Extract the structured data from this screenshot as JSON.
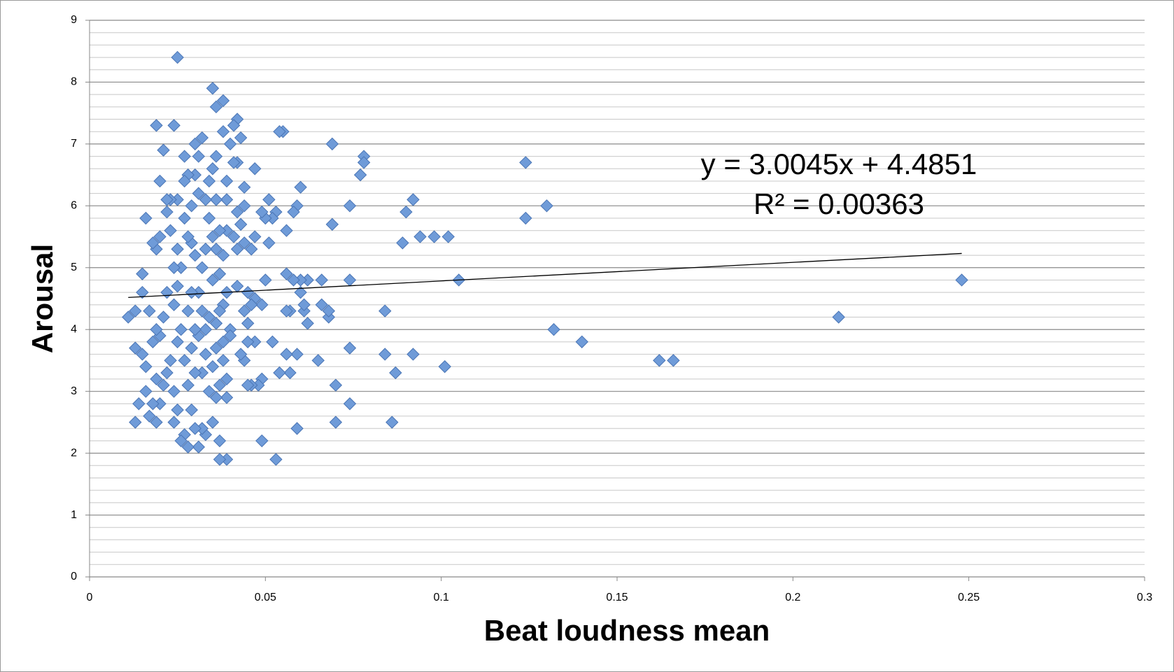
{
  "chart_data": {
    "type": "scatter",
    "x_label": "Beat loudness mean",
    "y_label": "Arousal",
    "xlim": [
      0,
      0.3
    ],
    "xticks": [
      0,
      0.05,
      0.1,
      0.15,
      0.2,
      0.25,
      0.3
    ],
    "ylim": [
      0,
      9
    ],
    "yticks": [
      0,
      1,
      2,
      3,
      4,
      5,
      6,
      7,
      8,
      9
    ],
    "grid": true,
    "minor_grid": true,
    "color": "#6f9bd8",
    "x": [
      0.248,
      0.213,
      0.166,
      0.162,
      0.14,
      0.132,
      0.13,
      0.124,
      0.124,
      0.105,
      0.102,
      0.101,
      0.098,
      0.094,
      0.092,
      0.092,
      0.09,
      0.089,
      0.087,
      0.086,
      0.084,
      0.084,
      0.078,
      0.078,
      0.077,
      0.074,
      0.074,
      0.074,
      0.074,
      0.07,
      0.07,
      0.069,
      0.069,
      0.068,
      0.068,
      0.066,
      0.066,
      0.065,
      0.062,
      0.062,
      0.061,
      0.061,
      0.06,
      0.06,
      0.06,
      0.059,
      0.059,
      0.059,
      0.058,
      0.058,
      0.057,
      0.057,
      0.056,
      0.056,
      0.056,
      0.056,
      0.055,
      0.054,
      0.054,
      0.053,
      0.053,
      0.052,
      0.052,
      0.051,
      0.051,
      0.05,
      0.05,
      0.049,
      0.049,
      0.049,
      0.049,
      0.048,
      0.047,
      0.047,
      0.047,
      0.047,
      0.046,
      0.046,
      0.046,
      0.045,
      0.045,
      0.045,
      0.045,
      0.044,
      0.044,
      0.044,
      0.044,
      0.044,
      0.043,
      0.043,
      0.043,
      0.042,
      0.042,
      0.042,
      0.042,
      0.042,
      0.041,
      0.041,
      0.041,
      0.04,
      0.04,
      0.04,
      0.039,
      0.039,
      0.039,
      0.039,
      0.039,
      0.039,
      0.039,
      0.038,
      0.038,
      0.038,
      0.038,
      0.038,
      0.038,
      0.037,
      0.037,
      0.037,
      0.037,
      0.037,
      0.037,
      0.036,
      0.036,
      0.036,
      0.036,
      0.036,
      0.036,
      0.036,
      0.035,
      0.035,
      0.035,
      0.035,
      0.035,
      0.035,
      0.034,
      0.034,
      0.034,
      0.034,
      0.033,
      0.033,
      0.033,
      0.033,
      0.033,
      0.032,
      0.032,
      0.032,
      0.032,
      0.032,
      0.031,
      0.031,
      0.031,
      0.031,
      0.031,
      0.03,
      0.03,
      0.03,
      0.03,
      0.03,
      0.03,
      0.029,
      0.029,
      0.029,
      0.029,
      0.029,
      0.028,
      0.028,
      0.028,
      0.028,
      0.028,
      0.027,
      0.027,
      0.027,
      0.027,
      0.027,
      0.026,
      0.026,
      0.026,
      0.025,
      0.025,
      0.025,
      0.025,
      0.025,
      0.025,
      0.024,
      0.024,
      0.024,
      0.024,
      0.024,
      0.023,
      0.023,
      0.023,
      0.022,
      0.022,
      0.022,
      0.022,
      0.021,
      0.021,
      0.021,
      0.02,
      0.02,
      0.02,
      0.02,
      0.019,
      0.019,
      0.019,
      0.019,
      0.019,
      0.018,
      0.018,
      0.018,
      0.017,
      0.017,
      0.016,
      0.016,
      0.016,
      0.015,
      0.015,
      0.015,
      0.014,
      0.013,
      0.013,
      0.013,
      0.011
    ],
    "y": [
      4.8,
      4.2,
      3.5,
      3.5,
      3.8,
      4.0,
      6.0,
      6.7,
      5.8,
      4.8,
      5.5,
      3.4,
      5.5,
      5.5,
      6.1,
      3.6,
      5.9,
      5.4,
      3.3,
      2.5,
      4.3,
      3.6,
      6.8,
      6.7,
      6.5,
      6.0,
      4.8,
      3.7,
      2.8,
      3.1,
      2.5,
      7.0,
      5.7,
      4.2,
      4.3,
      4.8,
      4.4,
      3.5,
      4.1,
      4.8,
      4.3,
      4.4,
      4.8,
      6.3,
      4.6,
      6.0,
      3.6,
      2.4,
      5.9,
      4.8,
      4.3,
      3.3,
      4.9,
      4.3,
      5.6,
      3.6,
      7.2,
      7.2,
      3.3,
      1.9,
      5.9,
      3.8,
      5.8,
      6.1,
      5.4,
      4.8,
      5.8,
      5.9,
      4.4,
      2.2,
      3.2,
      3.1,
      4.5,
      3.8,
      6.6,
      5.5,
      5.3,
      3.1,
      4.4,
      3.8,
      4.6,
      4.1,
      3.1,
      6.3,
      6.0,
      5.4,
      4.3,
      3.5,
      7.1,
      5.7,
      3.6,
      7.4,
      6.7,
      5.9,
      5.3,
      4.7,
      6.7,
      7.3,
      5.5,
      7.0,
      4.0,
      3.9,
      6.4,
      6.1,
      5.6,
      4.6,
      3.2,
      2.9,
      1.9,
      7.7,
      7.2,
      5.2,
      4.4,
      3.5,
      3.8,
      5.6,
      4.9,
      4.3,
      3.1,
      2.2,
      1.9,
      7.6,
      6.8,
      6.1,
      5.3,
      4.1,
      3.7,
      2.9,
      7.9,
      6.6,
      5.5,
      4.8,
      3.4,
      2.5,
      6.4,
      5.8,
      4.2,
      3.0,
      6.1,
      5.3,
      4.0,
      3.6,
      2.3,
      7.1,
      5.0,
      4.3,
      3.3,
      2.4,
      6.8,
      6.2,
      4.6,
      3.9,
      2.1,
      7.0,
      6.5,
      5.2,
      4.0,
      3.3,
      2.4,
      6.0,
      5.4,
      4.6,
      3.7,
      2.7,
      6.5,
      5.5,
      4.3,
      3.1,
      2.1,
      6.8,
      6.4,
      5.8,
      3.5,
      2.3,
      5.0,
      4.0,
      2.2,
      8.4,
      6.1,
      5.3,
      4.7,
      3.8,
      2.7,
      7.3,
      5.0,
      4.4,
      3.0,
      2.5,
      6.1,
      5.6,
      3.5,
      5.9,
      4.6,
      3.3,
      6.1,
      6.9,
      4.2,
      3.1,
      6.4,
      5.5,
      3.9,
      2.8,
      7.3,
      5.3,
      4.0,
      3.2,
      2.5,
      5.4,
      3.8,
      2.8,
      4.3,
      2.6,
      5.8,
      3.4,
      3.0,
      4.9,
      4.6,
      3.6,
      2.8,
      4.3,
      3.7,
      2.5,
      4.2
    ],
    "trendline": {
      "x": [
        0.011,
        0.248
      ],
      "y": [
        4.518,
        5.23
      ]
    },
    "annotations": [
      "y = 3.0045x + 4.4851",
      "R² = 0.00363"
    ]
  }
}
